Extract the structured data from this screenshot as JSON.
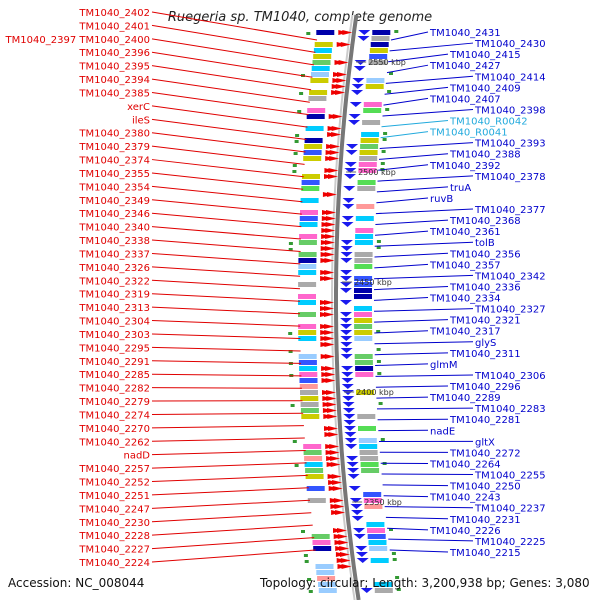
{
  "title": "Ruegeria sp. TM1040, complete genome",
  "footer": {
    "accession": "Accession: NC_008044",
    "summary": "Topology: circular; Length: 3,200,938 bp; Genes: 3,080"
  },
  "colors": {
    "left_labels": "#e00000",
    "right_labels": "#0000cc",
    "rna_labels": "#22aadd",
    "backbone": "#888888"
  },
  "left_labels": [
    "TM1040_2402",
    "TM1040_2401",
    "TM1040_2397 TM1040_2400",
    "TM1040_2396",
    "TM1040_2395",
    "TM1040_2394",
    "TM1040_2385",
    "xerC",
    "ileS",
    "TM1040_2380",
    "TM1040_2379",
    "TM1040_2374",
    "TM1040_2355",
    "TM1040_2354",
    "TM1040_2349",
    "TM1040_2346",
    "TM1040_2340",
    "TM1040_2338",
    "TM1040_2337",
    "TM1040_2326",
    "TM1040_2322",
    "TM1040_2319",
    "TM1040_2313",
    "TM1040_2304",
    "TM1040_2303",
    "TM1040_2295",
    "TM1040_2291",
    "TM1040_2285",
    "TM1040_2282",
    "TM1040_2279",
    "TM1040_2274",
    "TM1040_2270",
    "TM1040_2262",
    "nadD",
    "TM1040_2257",
    "TM1040_2252",
    "TM1040_2251",
    "TM1040_2247",
    "TM1040_2230",
    "TM1040_2228",
    "TM1040_2227",
    "TM1040_2224"
  ],
  "right_labels": [
    "TM1040_2431",
    "TM1040_2430",
    "TM1040_2415",
    "TM1040_2427",
    "TM1040_2414",
    "TM1040_2409",
    "TM1040_2407",
    "TM1040_2398",
    "TM1040_R0042",
    "TM1040_R0041",
    "TM1040_2393",
    "TM1040_2388",
    "TM1040_2392",
    "TM1040_2378",
    "truA",
    "ruvB",
    "TM1040_2377",
    "TM1040_2368",
    "TM1040_2361",
    "tolB",
    "TM1040_2356",
    "TM1040_2357",
    "TM1040_2342",
    "TM1040_2336",
    "TM1040_2334",
    "TM1040_2327",
    "TM1040_2321",
    "TM1040_2317",
    "glyS",
    "TM1040_2311",
    "glmM",
    "TM1040_2306",
    "TM1040_2296",
    "TM1040_2289",
    "TM1040_2283",
    "TM1040_2281",
    "nadE",
    "gltX",
    "TM1040_2272",
    "TM1040_2264",
    "TM1040_2255",
    "TM1040_2250",
    "TM1040_2243",
    "TM1040_2237",
    "TM1040_2231",
    "TM1040_2226",
    "TM1040_2225",
    "TM1040_2215"
  ],
  "ticks": [
    "2550 kbp",
    "2500 kbp",
    "2450 kbp",
    "2400 kbp",
    "2350 kbp"
  ]
}
